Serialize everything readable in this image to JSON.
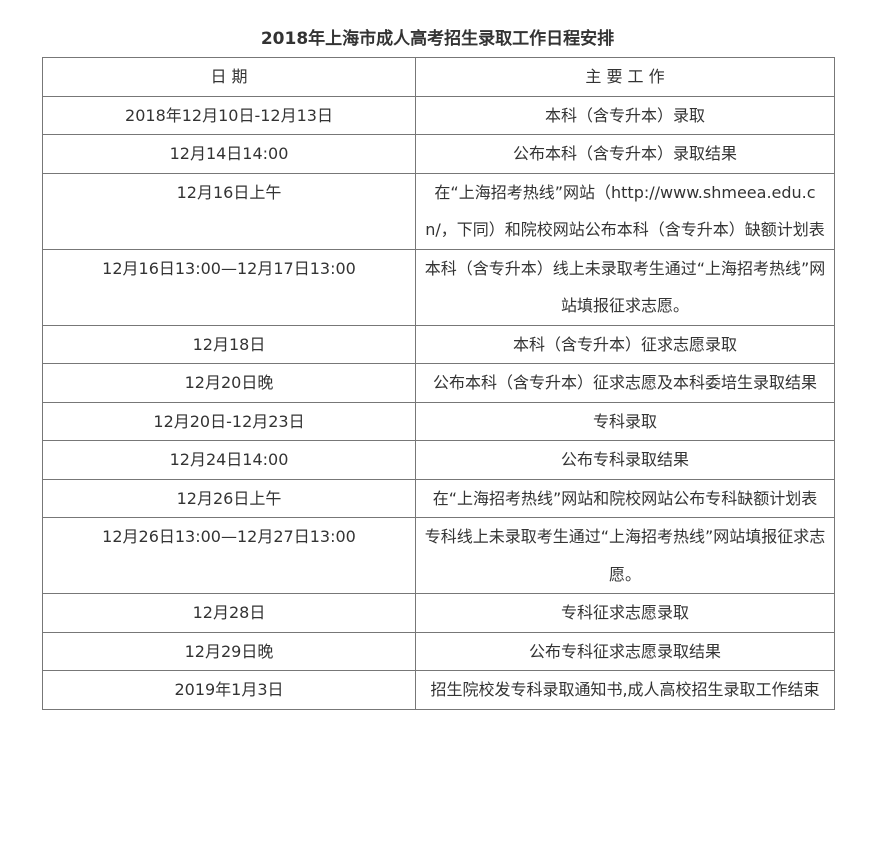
{
  "title": "2018年上海市成人高考招生录取工作日程安排",
  "headers": [
    "日 期",
    "主 要 工 作"
  ],
  "rows": [
    {
      "date": "2018年12月10日-12月13日",
      "work": "本科（含专升本）录取"
    },
    {
      "date": "12月14日14:00",
      "work": "公布本科（含专升本）录取结果"
    },
    {
      "date": "12月16日上午",
      "work": "在“上海招考热线”网站（http://www.shmeea.edu.cn/，下同）和院校网站公布本科（含专升本）缺额计划表"
    },
    {
      "date": "12月16日13:00—12月17日13:00",
      "work": "本科（含专升本）线上未录取考生通过“上海招考热线”网站填报征求志愿。"
    },
    {
      "date": "12月18日",
      "work": "本科（含专升本）征求志愿录取"
    },
    {
      "date": "12月20日晚",
      "work": "公布本科（含专升本）征求志愿及本科委培生录取结果"
    },
    {
      "date": "12月20日-12月23日",
      "work": "专科录取"
    },
    {
      "date": "12月24日14:00",
      "work": "公布专科录取结果"
    },
    {
      "date": "12月26日上午",
      "work": "在“上海招考热线”网站和院校网站公布专科缺额计划表"
    },
    {
      "date": "12月26日13:00—12月27日13:00",
      "work": "专科线上未录取考生通过“上海招考热线”网站填报征求志愿。"
    },
    {
      "date": "12月28日",
      "work": "专科征求志愿录取"
    },
    {
      "date": "12月29日晚",
      "work": "公布专科征求志愿录取结果"
    },
    {
      "date": "2019年1月3日",
      "work": "招生院校发专科录取通知书,成人高校招生录取工作结束"
    }
  ]
}
